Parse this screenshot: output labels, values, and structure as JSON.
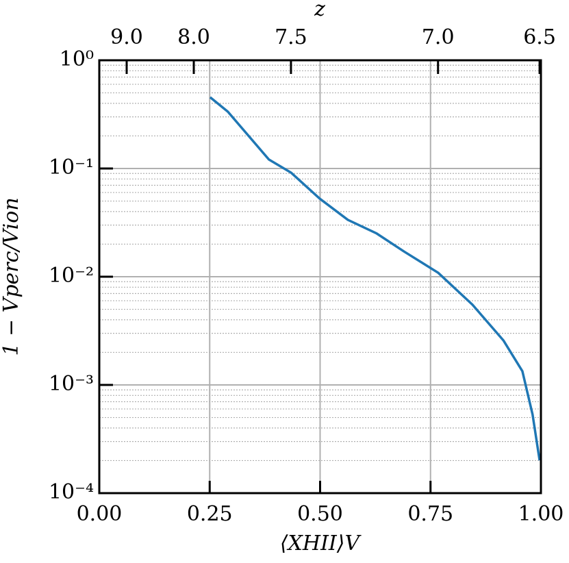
{
  "chart_data": {
    "type": "line",
    "xlabel": "⟨XHII⟩V",
    "ylabel": "1 − Vperc/Vion",
    "x": [
      0.251,
      0.291,
      0.384,
      0.434,
      0.499,
      0.563,
      0.628,
      0.69,
      0.767,
      0.845,
      0.915,
      0.958,
      0.981,
      0.997
    ],
    "series": [
      {
        "color": "#1f77b4",
        "values": [
          0.455,
          0.335,
          0.121,
          0.0917,
          0.0527,
          0.0335,
          0.0251,
          0.0171,
          0.0109,
          0.00551,
          0.00258,
          0.00134,
          0.000535,
          0.000201
        ]
      }
    ],
    "xlim": [
      0,
      1
    ],
    "xticks": [
      {
        "value": 0,
        "label": "0.00"
      },
      {
        "value": 0.25,
        "label": "0.25"
      },
      {
        "value": 0.5,
        "label": "0.50"
      },
      {
        "value": 0.75,
        "label": "0.75"
      },
      {
        "value": 1,
        "label": "1.00"
      }
    ],
    "ylim": [
      0.0001,
      1
    ],
    "yticks": [
      {
        "value": 0.0001,
        "label": "10⁻⁴"
      },
      {
        "value": 0.001,
        "label": "10⁻³"
      },
      {
        "value": 0.01,
        "label": "10⁻²"
      },
      {
        "value": 0.1,
        "label": "10⁻¹"
      },
      {
        "value": 1,
        "label": "10⁰"
      }
    ],
    "ylog": true,
    "grid": true,
    "minor_grid": true,
    "top_axis": {
      "label": "z",
      "ticks": [
        {
          "value": 9,
          "label": "9.0",
          "x_at": 0.062
        },
        {
          "value": 8,
          "label": "8.0",
          "x_at": 0.214
        },
        {
          "value": 7.5,
          "label": "7.5",
          "x_at": 0.434
        },
        {
          "value": 7,
          "label": "7.0",
          "x_at": 0.767
        },
        {
          "value": 6.5,
          "label": "6.5",
          "x_at": 0.997
        }
      ]
    }
  }
}
